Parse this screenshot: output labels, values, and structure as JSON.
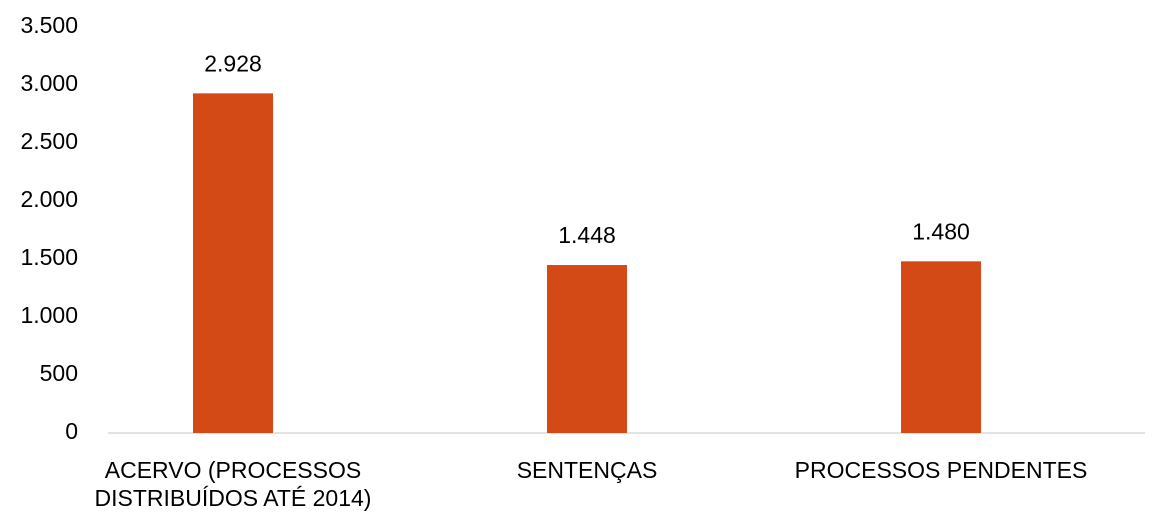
{
  "chart_data": {
    "type": "bar",
    "categories": [
      "ACERVO (PROCESSOS DISTRIBUÍDOS ATÉ 2014)",
      "SENTENÇAS",
      "PROCESSOS PENDENTES"
    ],
    "values": [
      2928,
      1448,
      1480
    ],
    "value_labels": [
      "2.928",
      "1.448",
      "1.480"
    ],
    "color": "#d34a17",
    "ylim": [
      0,
      3500
    ],
    "yticks": [
      0,
      500,
      {
        "value": 1000,
        "label": "1.000"
      },
      {
        "value": 1500,
        "label": "1.500"
      },
      {
        "value": 2000,
        "label": "2.000"
      },
      {
        "value": 2500,
        "label": "2.500"
      },
      {
        "value": 3000,
        "label": "3.000"
      },
      {
        "value": 3500,
        "label": "3.500"
      }
    ],
    "grid": false
  }
}
